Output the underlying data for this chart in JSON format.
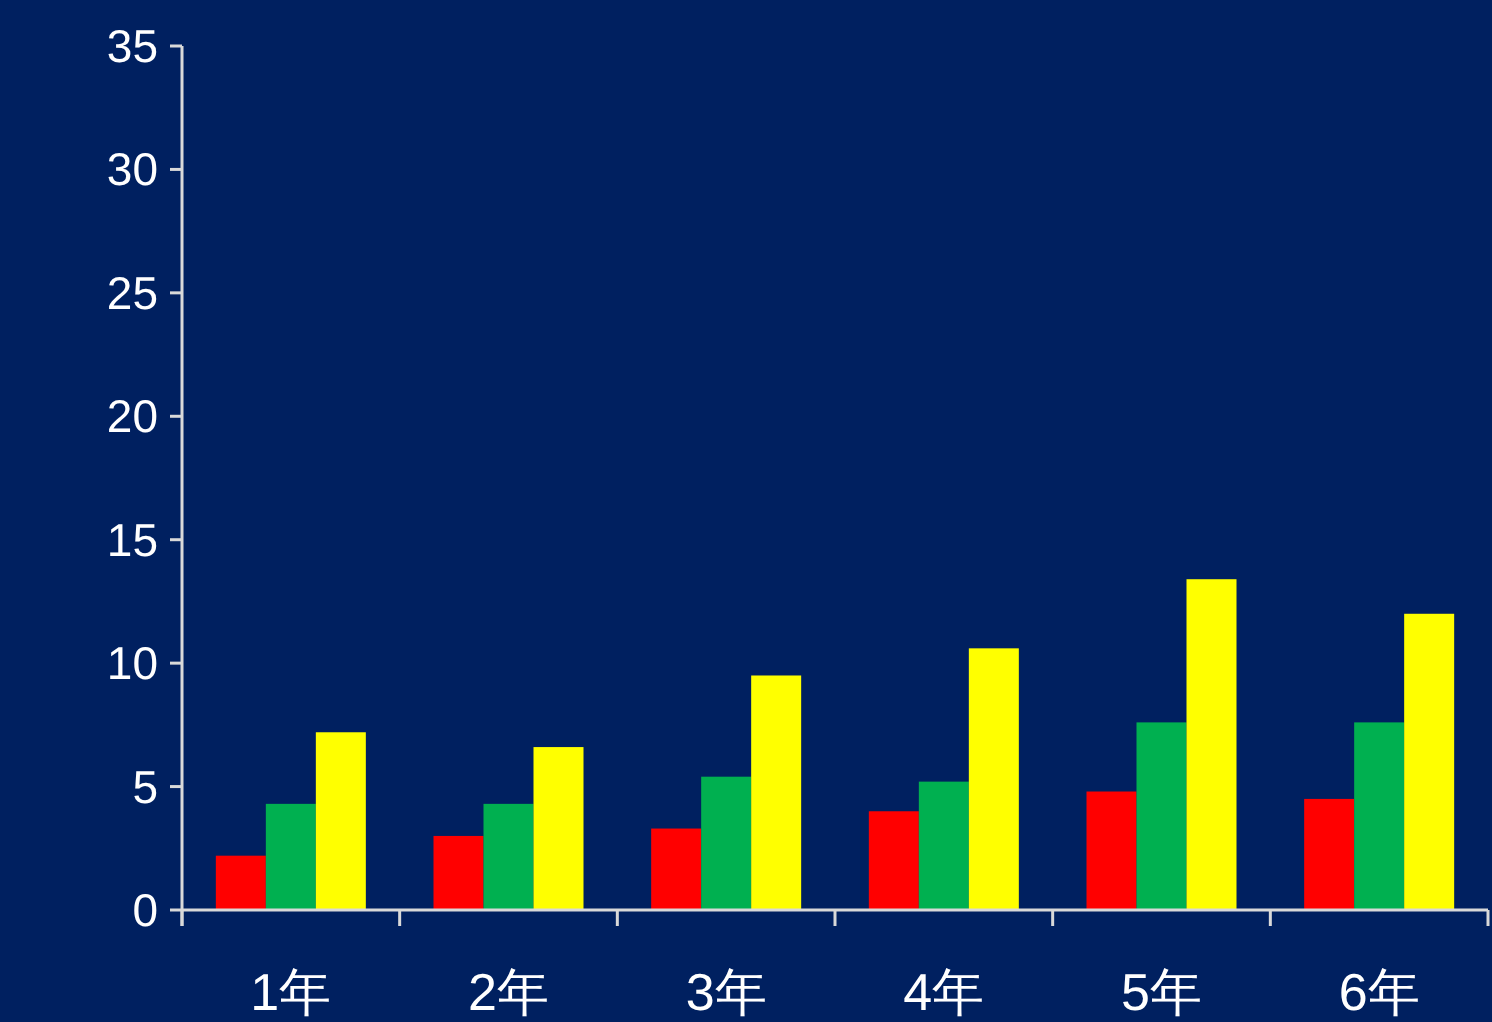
{
  "chart_data": {
    "type": "bar",
    "categories": [
      "1年",
      "2年",
      "3年",
      "4年",
      "5年",
      "6年"
    ],
    "series": [
      {
        "color": "#ff0000",
        "values": [
          2.2,
          3.0,
          3.3,
          4.0,
          4.8,
          4.5
        ]
      },
      {
        "color": "#00b050",
        "values": [
          4.3,
          4.3,
          5.4,
          5.2,
          7.6,
          7.6
        ]
      },
      {
        "color": "#ffff00",
        "values": [
          7.2,
          6.6,
          9.5,
          10.6,
          13.4,
          12.0
        ]
      }
    ],
    "ylim": [
      0,
      35
    ],
    "yticks": [
      0,
      5,
      10,
      15,
      20,
      25,
      30,
      35
    ],
    "grid": false
  }
}
